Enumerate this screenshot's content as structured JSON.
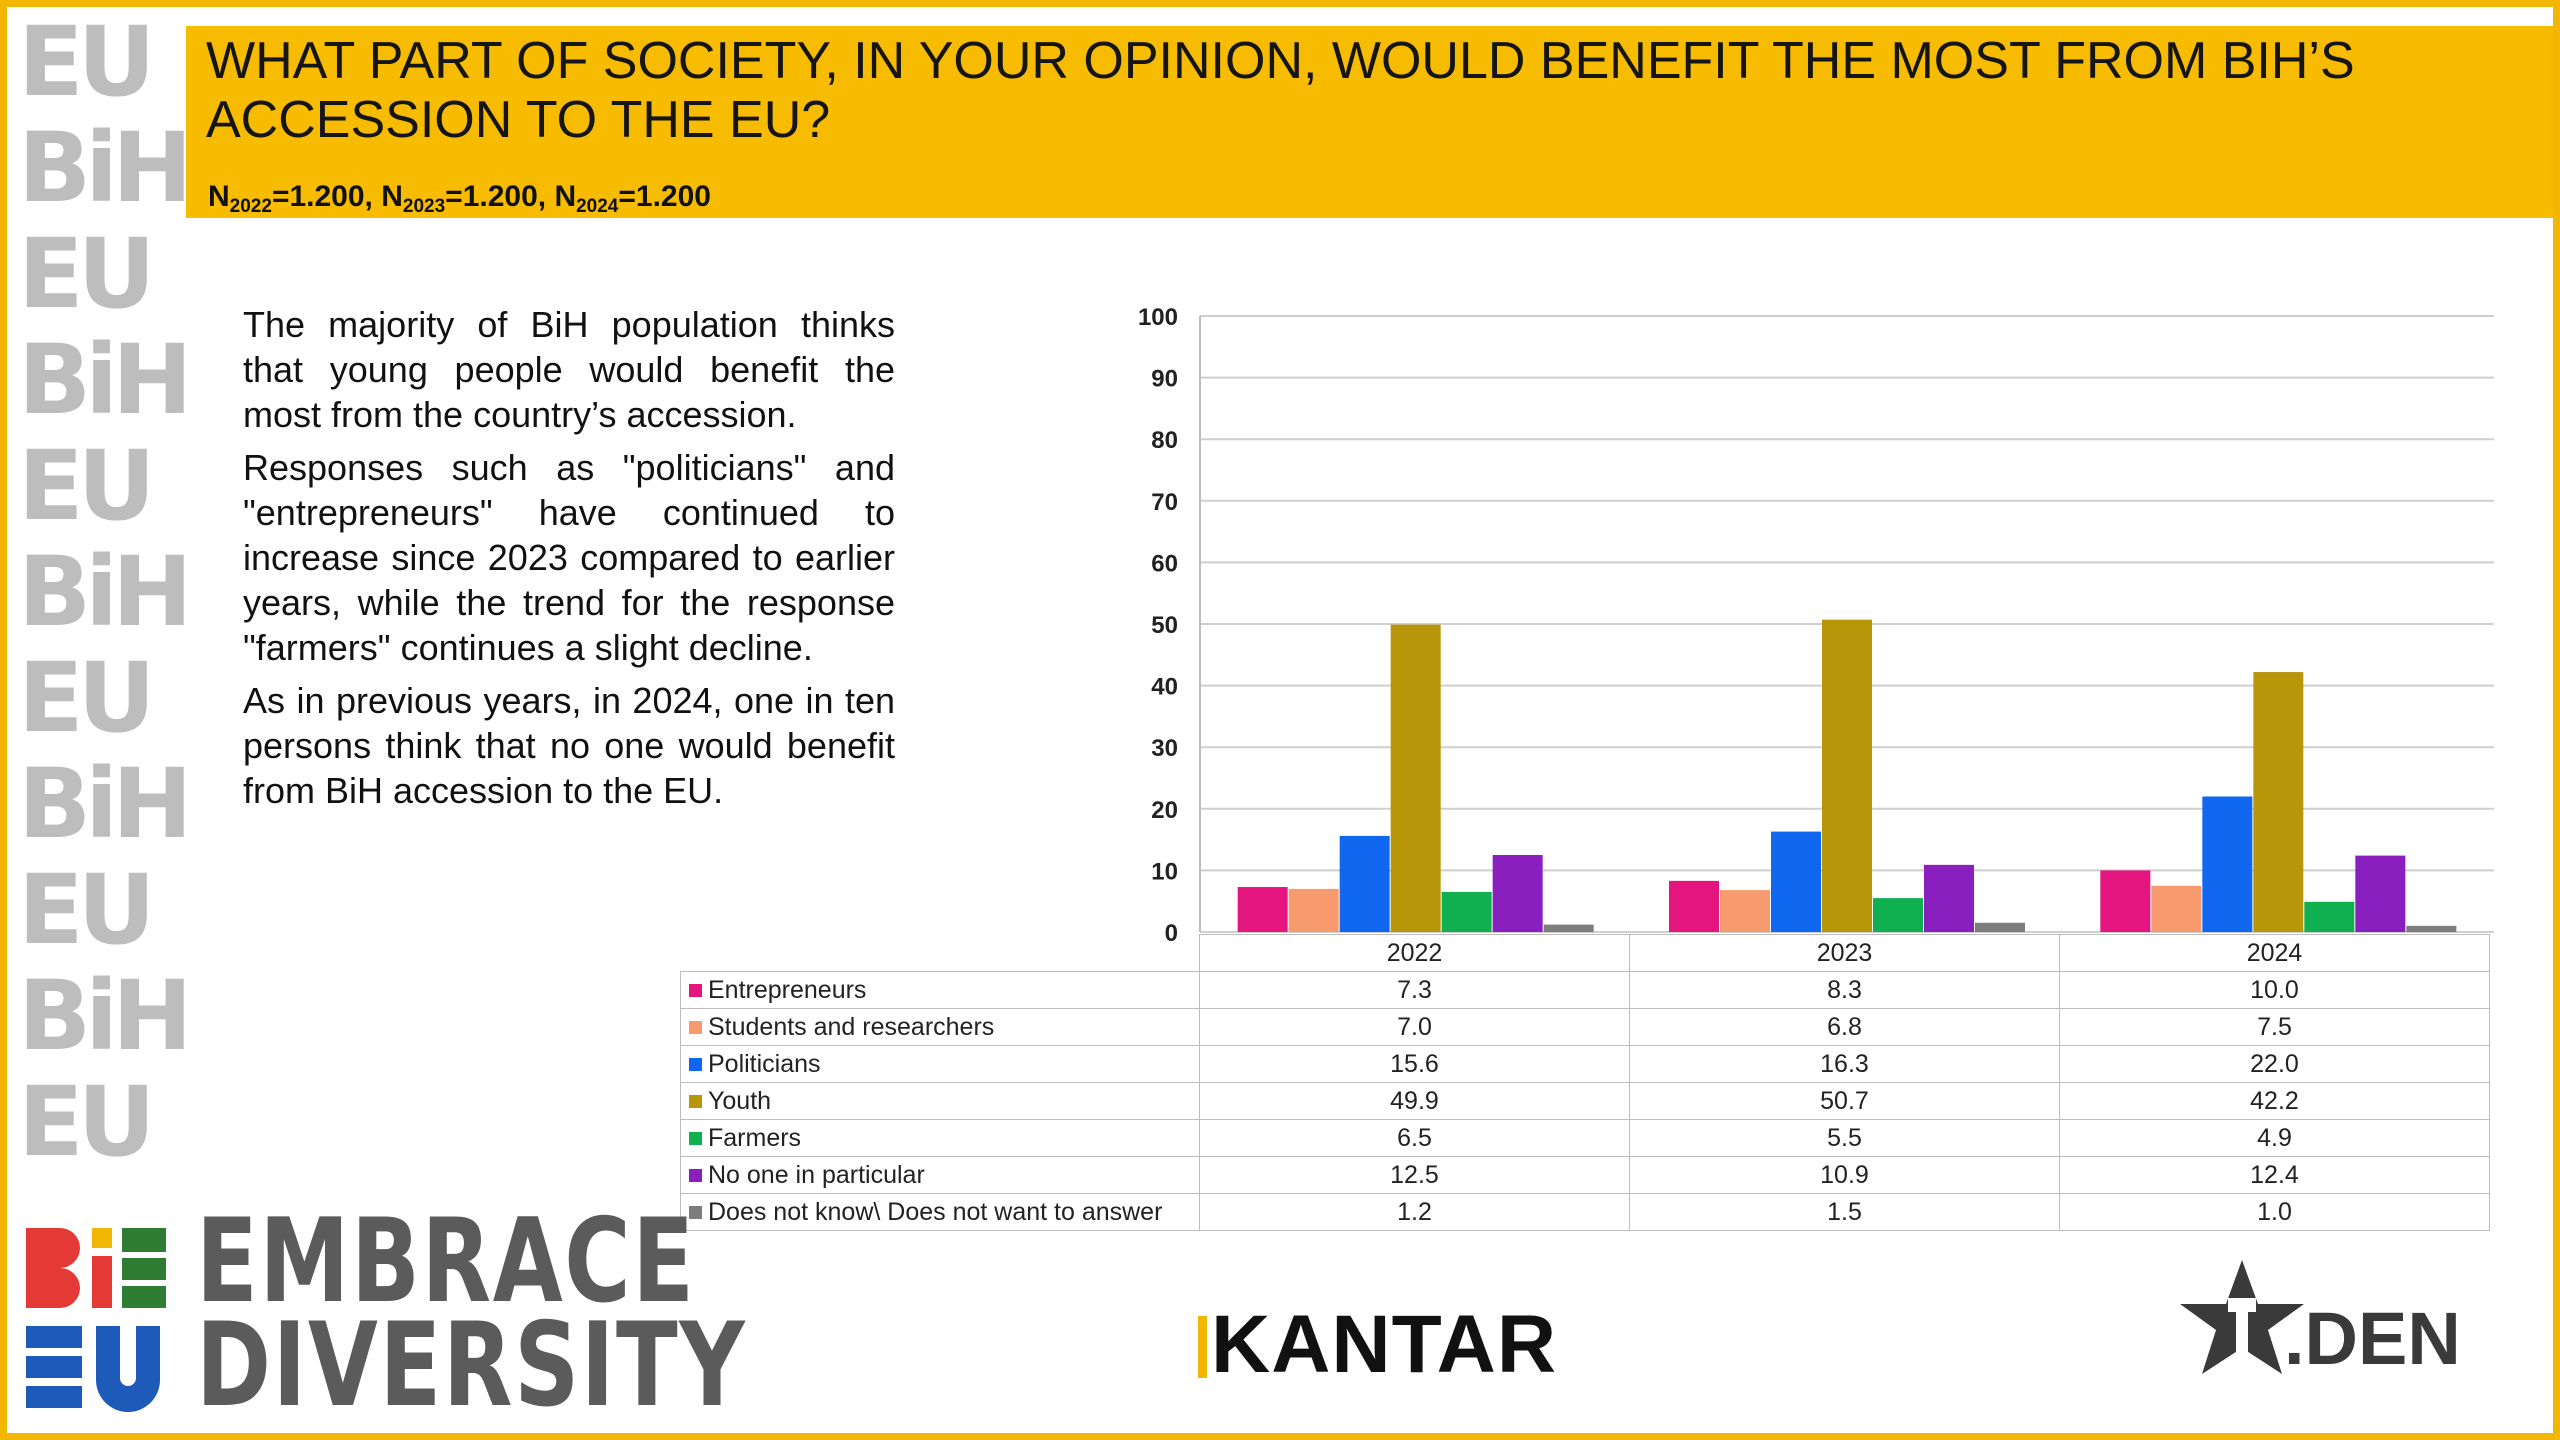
{
  "header": {
    "title": "WHAT PART OF SOCIETY, IN YOUR OPINION, WOULD BENEFIT THE MOST FROM BIH’S ACCESSION TO THE EU?",
    "n_parts": [
      {
        "n": "N",
        "sub": "2022",
        "val": "=1.200, "
      },
      {
        "n": "N",
        "sub": "2023",
        "val": "=1.200, "
      },
      {
        "n": "N",
        "sub": "2024",
        "val": "=1.200"
      }
    ]
  },
  "description": [
    "The majority of BiH population thinks that young people would benefit the most from the country’s accession.",
    "Responses such as \"politicians\" and \"entrepreneurs\" have continued to increase since 2023 compared to earlier years, while the trend for the response \"farmers\" continues a slight decline.",
    "As in previous years, in 2024, one in ten persons think that no one would benefit from BiH accession to the EU."
  ],
  "chart_data": {
    "type": "bar",
    "categories": [
      "2022",
      "2023",
      "2024"
    ],
    "ylim": [
      0,
      100
    ],
    "yticks": [
      0,
      10,
      20,
      30,
      40,
      50,
      60,
      70,
      80,
      90,
      100
    ],
    "grid": true,
    "legend": "data table below chart",
    "series": [
      {
        "name": "Entrepreneurs",
        "color": "#e5157f",
        "values": [
          7.3,
          8.3,
          10.0
        ],
        "labels": [
          "7.3",
          "8.3",
          "10.0"
        ]
      },
      {
        "name": "Students and researchers",
        "color": "#f79a6e",
        "values": [
          7.0,
          6.8,
          7.5
        ],
        "labels": [
          "7.0",
          "6.8",
          "7.5"
        ]
      },
      {
        "name": "Politicians",
        "color": "#0f67f0",
        "values": [
          15.6,
          16.3,
          22.0
        ],
        "labels": [
          "15.6",
          "16.3",
          "22.0"
        ]
      },
      {
        "name": "Youth",
        "color": "#b8960a",
        "values": [
          49.9,
          50.7,
          42.2
        ],
        "labels": [
          "49.9",
          "50.7",
          "42.2"
        ]
      },
      {
        "name": "Farmers",
        "color": "#10b050",
        "values": [
          6.5,
          5.5,
          4.9
        ],
        "labels": [
          "6.5",
          "5.5",
          "4.9"
        ]
      },
      {
        "name": "No one in particular",
        "color": "#8a1fbf",
        "values": [
          12.5,
          10.9,
          12.4
        ],
        "labels": [
          "12.5",
          "10.9",
          "12.4"
        ]
      },
      {
        "name": "Does not know\\ Does not want to answer",
        "color": "#7d7d7d",
        "values": [
          1.2,
          1.5,
          1.0
        ],
        "labels": [
          "1.2",
          "1.5",
          "1.0"
        ]
      }
    ]
  },
  "logos": {
    "embrace_line1": "EMBRACE",
    "embrace_line2": "DIVERSITY",
    "kantar": "KANTAR",
    "den": ".DEN",
    "strip_text": [
      "EU",
      "BiH",
      "EU",
      "BiH",
      "EU",
      "BiH",
      "EU",
      "BiH",
      "EU",
      "BiH",
      "EU"
    ]
  }
}
